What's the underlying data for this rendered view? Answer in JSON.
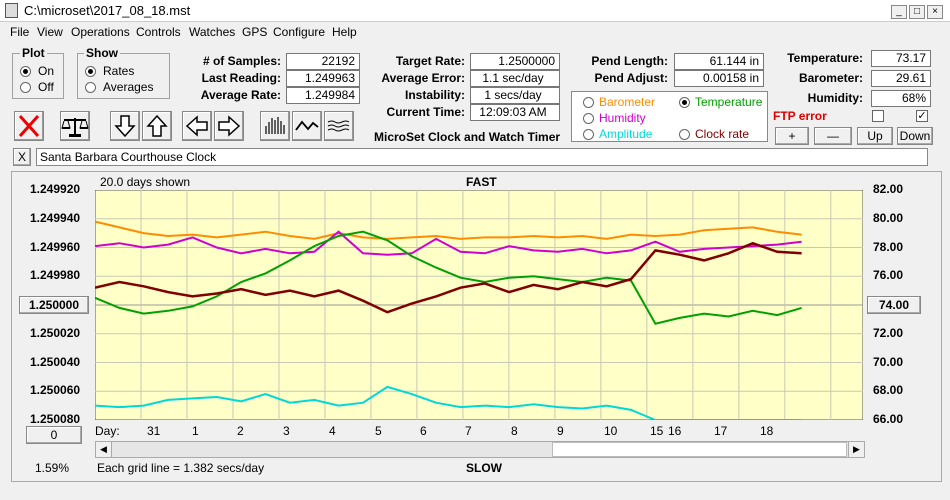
{
  "window": {
    "title": "C:\\microset\\2017_08_18.mst"
  },
  "menu": [
    "File",
    "View",
    "Operations",
    "Controls",
    "Watches",
    "GPS",
    "Configure",
    "Help"
  ],
  "plot_group": {
    "title": "Plot",
    "on": "On",
    "off": "Off"
  },
  "show_group": {
    "title": "Show",
    "rates": "Rates",
    "averages": "Averages"
  },
  "stats1": [
    {
      "label": "# of Samples:",
      "value": "22192"
    },
    {
      "label": "Last Reading:",
      "value": "1.249963"
    },
    {
      "label": "Average Rate:",
      "value": "1.249984"
    }
  ],
  "stats2": [
    {
      "label": "Target Rate:",
      "value": "1.2500000"
    },
    {
      "label": "Average Error:",
      "value": "1.1 sec/day"
    },
    {
      "label": "Instability:",
      "value": "1 secs/day"
    },
    {
      "label": "Current Time:",
      "value": "12:09:03 AM"
    }
  ],
  "app_caption": "MicroSet Clock and Watch Timer",
  "pend": [
    {
      "label": "Pend Length:",
      "value": "61.144 in"
    },
    {
      "label": "Pend Adjust:",
      "value": "0.00158 in"
    }
  ],
  "env": [
    {
      "label": "Temperature:",
      "value": "73.17"
    },
    {
      "label": "Barometer:",
      "value": "29.61"
    },
    {
      "label": "Humidity:",
      "value": "68%"
    }
  ],
  "legend": [
    {
      "label": "Barometer",
      "color": "#ff8c00",
      "selected": false
    },
    {
      "label": "Temperature",
      "color": "#00a000",
      "selected": true
    },
    {
      "label": "Humidity",
      "color": "#d000d0",
      "selected": false
    },
    {
      "label": "Amplitude",
      "color": "#00d8d8",
      "selected": false
    },
    {
      "label": "Clock rate",
      "color": "#800000",
      "selected": false
    }
  ],
  "ftp": {
    "label": "FTP error",
    "color": "#e00000"
  },
  "small_buttons": {
    "plus": "+",
    "minus": "—",
    "up": "Up",
    "down": "Down"
  },
  "note": {
    "close": "X",
    "text": "Santa Barbara Courthouse Clock"
  },
  "chart_data": {
    "type": "line",
    "top_label": "FAST",
    "bottom_label": "SLOW",
    "days_shown": "20.0 days shown",
    "grid_note": "Each grid line = 1.382 secs/day",
    "left_axis": [
      "1.249920",
      "1.249940",
      "1.249960",
      "1.249980",
      "1.250000",
      "1.250020",
      "1.250040",
      "1.250060",
      "1.250080"
    ],
    "left_axis_range": [
      1.24992,
      1.25008
    ],
    "left_center_button": "1.250000",
    "right_axis": [
      "82.00",
      "80.00",
      "78.00",
      "76.00",
      "74.00",
      "72.00",
      "70.00",
      "68.00",
      "66.00"
    ],
    "right_axis_range": [
      66,
      82
    ],
    "right_center_button": "74.00",
    "day_prefix": "Day:",
    "days": [
      "31",
      "1",
      "2",
      "3",
      "4",
      "5",
      "6",
      "7",
      "8",
      "9",
      "10",
      "15",
      "16",
      "17",
      "18"
    ],
    "zero_button": "0",
    "percent": "1.59%",
    "grid": true,
    "series": [
      {
        "name": "Barometer",
        "color": "#ff8c00",
        "values": [
          79.8,
          79.4,
          79.0,
          78.8,
          78.9,
          78.7,
          78.9,
          79.1,
          78.8,
          78.6,
          79.0,
          78.7,
          78.6,
          78.7,
          78.8,
          78.6,
          78.7,
          78.7,
          78.8,
          78.7,
          78.8,
          78.6,
          78.9,
          78.8,
          78.9,
          79.2,
          79.3,
          79.4,
          79.1,
          78.9
        ]
      },
      {
        "name": "Humidity",
        "color": "#d000d0",
        "values": [
          78.1,
          78.3,
          78.0,
          78.2,
          78.7,
          78.0,
          77.6,
          77.9,
          77.6,
          77.7,
          79.1,
          77.6,
          77.5,
          77.6,
          78.6,
          77.7,
          77.6,
          78.1,
          77.8,
          77.7,
          77.9,
          77.6,
          77.8,
          78.4,
          77.7,
          77.9,
          78.0,
          78.1,
          78.2,
          78.4
        ]
      },
      {
        "name": "Temperature",
        "color": "#00a000",
        "values": [
          74.5,
          73.8,
          73.4,
          73.6,
          73.9,
          74.6,
          75.6,
          76.2,
          77.1,
          78.1,
          78.8,
          79.1,
          78.5,
          77.4,
          76.6,
          75.9,
          75.6,
          75.9,
          76.0,
          75.8,
          75.6,
          75.9,
          75.7,
          72.7,
          73.1,
          73.4,
          73.2,
          73.6,
          73.3,
          73.8
        ]
      },
      {
        "name": "Clock rate",
        "color": "#800000",
        "values": [
          75.2,
          75.6,
          75.3,
          74.9,
          74.6,
          74.8,
          75.1,
          74.7,
          75.0,
          74.6,
          75.0,
          74.3,
          73.5,
          74.1,
          74.6,
          75.2,
          75.5,
          74.9,
          75.4,
          75.1,
          75.6,
          75.3,
          75.8,
          77.8,
          77.5,
          77.1,
          77.6,
          78.3,
          77.7,
          77.6
        ]
      },
      {
        "name": "Amplitude",
        "color": "#00d8d8",
        "values": [
          67.0,
          66.9,
          67.0,
          67.4,
          67.5,
          67.6,
          67.3,
          67.8,
          67.2,
          67.4,
          67.0,
          67.2,
          68.3,
          67.8,
          67.2,
          66.9,
          67.0,
          66.9,
          67.1,
          66.9,
          66.8,
          67.0,
          66.7,
          66.0,
          66.0,
          66.0,
          66.0,
          66.0,
          66.0,
          66.0
        ]
      }
    ]
  }
}
